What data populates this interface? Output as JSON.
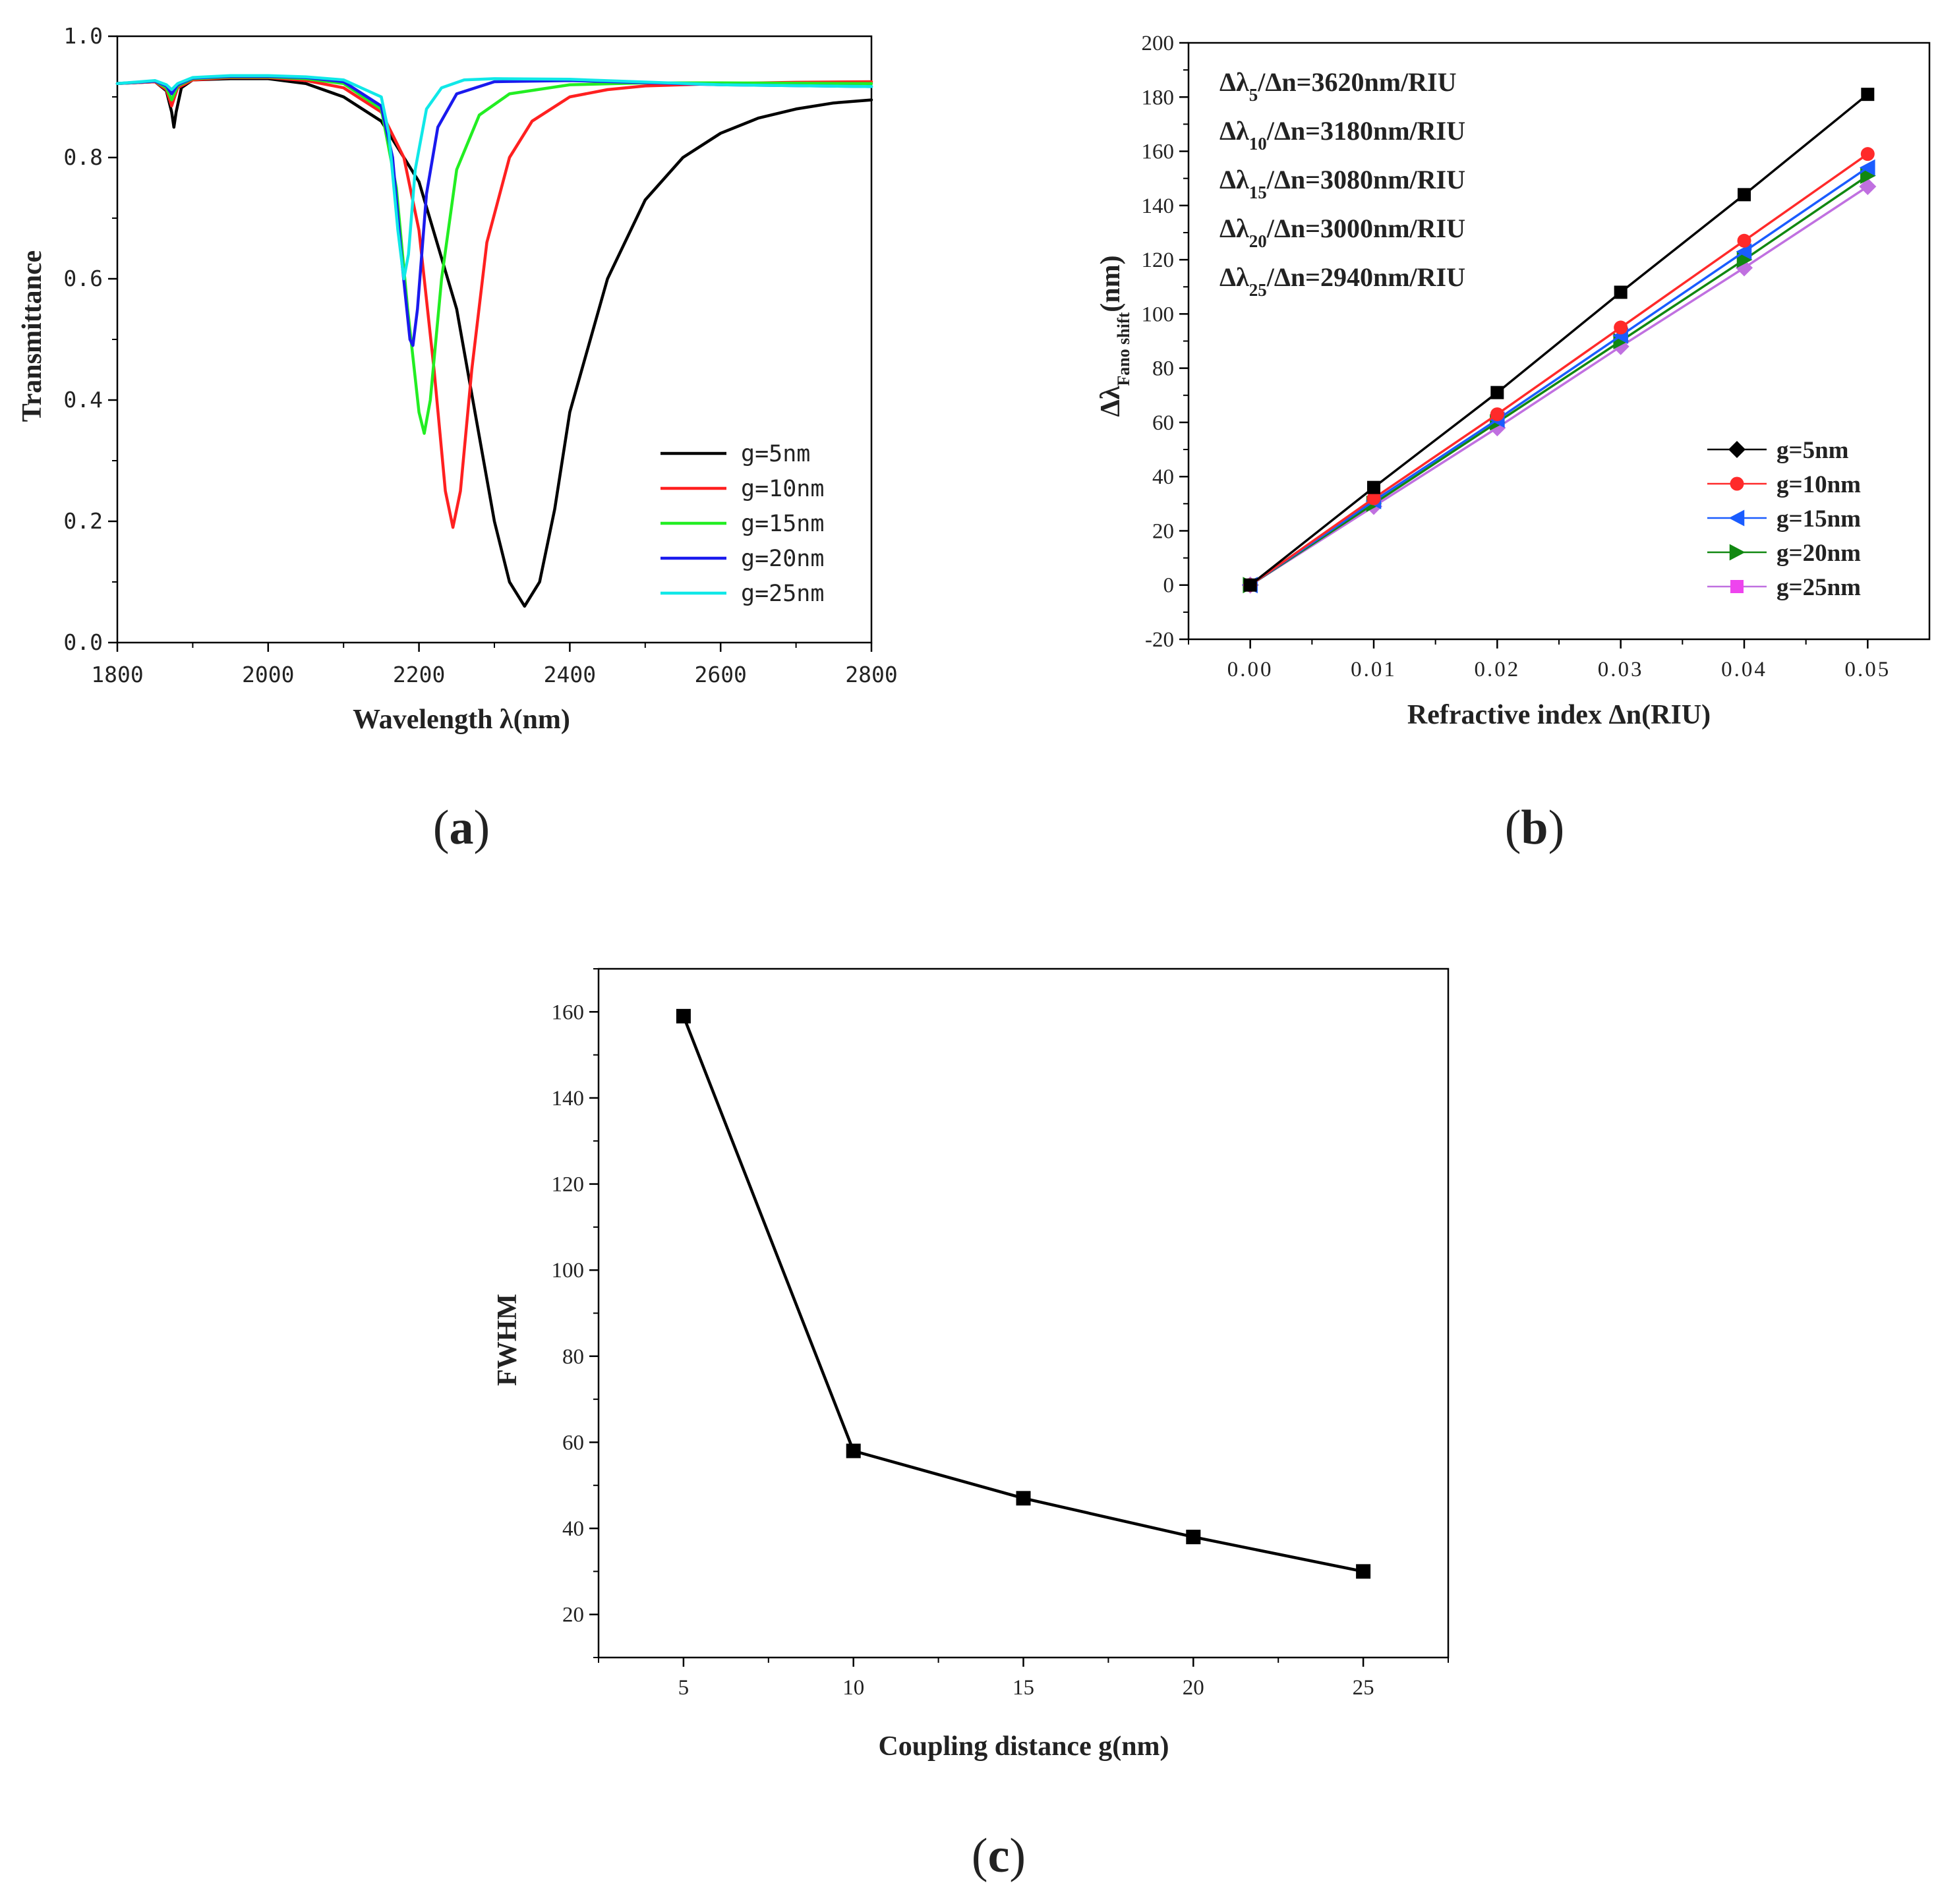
{
  "chart_data": [
    {
      "panel": "(a)",
      "panel_letter": "a",
      "type": "line",
      "xlabel": "Wavelength λ(nm)",
      "ylabel": "Transmittance",
      "xlim": [
        1800,
        2800
      ],
      "ylim": [
        0,
        1.0
      ],
      "xticks": [
        "1800",
        "2000",
        "2200",
        "2400",
        "2600",
        "2800"
      ],
      "yticks": [
        "0.0",
        "0.2",
        "0.4",
        "0.6",
        "0.8",
        "1.0"
      ],
      "grid": false,
      "legend_position": "lower-right",
      "series": [
        {
          "name": "g=5nm",
          "color": "#000000",
          "x": [
            1800,
            1850,
            1865,
            1872,
            1875,
            1878,
            1885,
            1900,
            1950,
            2000,
            2050,
            2100,
            2150,
            2200,
            2250,
            2280,
            2300,
            2320,
            2340,
            2360,
            2380,
            2400,
            2450,
            2500,
            2550,
            2600,
            2650,
            2700,
            2750,
            2800
          ],
          "y": [
            0.922,
            0.925,
            0.91,
            0.875,
            0.85,
            0.875,
            0.915,
            0.928,
            0.93,
            0.93,
            0.922,
            0.9,
            0.86,
            0.76,
            0.55,
            0.34,
            0.2,
            0.1,
            0.06,
            0.1,
            0.22,
            0.38,
            0.6,
            0.73,
            0.8,
            0.84,
            0.865,
            0.88,
            0.89,
            0.895
          ]
        },
        {
          "name": "g=10nm",
          "color": "#ff2020",
          "x": [
            1800,
            1850,
            1865,
            1872,
            1880,
            1900,
            1950,
            2000,
            2050,
            2100,
            2150,
            2180,
            2200,
            2220,
            2235,
            2245,
            2255,
            2270,
            2290,
            2320,
            2350,
            2400,
            2450,
            2500,
            2600,
            2700,
            2800
          ],
          "y": [
            0.922,
            0.925,
            0.912,
            0.885,
            0.915,
            0.928,
            0.932,
            0.932,
            0.927,
            0.915,
            0.875,
            0.8,
            0.68,
            0.45,
            0.25,
            0.19,
            0.25,
            0.45,
            0.66,
            0.8,
            0.86,
            0.9,
            0.912,
            0.918,
            0.922,
            0.924,
            0.925
          ]
        },
        {
          "name": "g=15nm",
          "color": "#22ee22",
          "x": [
            1800,
            1850,
            1865,
            1872,
            1880,
            1900,
            1950,
            2000,
            2050,
            2100,
            2150,
            2170,
            2185,
            2200,
            2207,
            2215,
            2230,
            2250,
            2280,
            2320,
            2400,
            2500,
            2600,
            2800
          ],
          "y": [
            0.922,
            0.926,
            0.915,
            0.895,
            0.918,
            0.93,
            0.933,
            0.933,
            0.93,
            0.922,
            0.88,
            0.75,
            0.55,
            0.38,
            0.345,
            0.4,
            0.6,
            0.78,
            0.87,
            0.905,
            0.92,
            0.923,
            0.923,
            0.922
          ]
        },
        {
          "name": "g=20nm",
          "color": "#1a1aee",
          "x": [
            1800,
            1850,
            1865,
            1872,
            1880,
            1900,
            1950,
            2000,
            2050,
            2100,
            2150,
            2165,
            2178,
            2188,
            2192,
            2198,
            2210,
            2225,
            2250,
            2300,
            2400,
            2600,
            2800
          ],
          "y": [
            0.922,
            0.926,
            0.918,
            0.905,
            0.92,
            0.931,
            0.934,
            0.934,
            0.932,
            0.925,
            0.885,
            0.8,
            0.62,
            0.5,
            0.49,
            0.55,
            0.74,
            0.85,
            0.905,
            0.925,
            0.927,
            0.92,
            0.917
          ]
        },
        {
          "name": "g=25nm",
          "color": "#10e8e8",
          "x": [
            1800,
            1850,
            1865,
            1872,
            1880,
            1900,
            1950,
            2000,
            2050,
            2100,
            2150,
            2160,
            2172,
            2180,
            2186,
            2195,
            2210,
            2230,
            2260,
            2300,
            2400,
            2600,
            2800
          ],
          "y": [
            0.922,
            0.927,
            0.92,
            0.912,
            0.922,
            0.932,
            0.935,
            0.935,
            0.933,
            0.928,
            0.9,
            0.84,
            0.68,
            0.6,
            0.64,
            0.78,
            0.88,
            0.915,
            0.928,
            0.93,
            0.929,
            0.92,
            0.917
          ]
        }
      ]
    },
    {
      "panel": "(b)",
      "panel_letter": "b",
      "type": "line",
      "xlabel": "Refractive index Δn(RIU)",
      "ylabel": "Δλ",
      "ylabel_sub": "Fano shift",
      "ylabel_tail": "(nm)",
      "xlim": [
        -0.005,
        0.055
      ],
      "ylim": [
        -20,
        200
      ],
      "xticks": [
        "0.00",
        "0.01",
        "0.02",
        "0.03",
        "0.04",
        "0.05"
      ],
      "yticks": [
        "-20",
        "0",
        "20",
        "40",
        "60",
        "80",
        "100",
        "120",
        "140",
        "160",
        "180",
        "200"
      ],
      "grid": false,
      "legend_position": "lower-right",
      "annotations": [
        {
          "pre": "Δλ",
          "sub": "5",
          "post": "/Δn=3620nm/RIU"
        },
        {
          "pre": "Δλ",
          "sub": "10",
          "post": "/Δn=3180nm/RIU"
        },
        {
          "pre": "Δλ",
          "sub": "15",
          "post": "/Δn=3080nm/RIU"
        },
        {
          "pre": "Δλ",
          "sub": "20",
          "post": "/Δn=3000nm/RIU"
        },
        {
          "pre": "Δλ",
          "sub": "25",
          "post": "/Δn=2940nm/RIU"
        }
      ],
      "x": [
        0,
        0.01,
        0.02,
        0.03,
        0.04,
        0.05
      ],
      "series": [
        {
          "name": "g=5nm",
          "color": "#000000",
          "marker": "square",
          "legend_marker": "diamond",
          "values": [
            0,
            36,
            71,
            108,
            144,
            181
          ]
        },
        {
          "name": "g=10nm",
          "color": "#ff2a2a",
          "marker": "circle",
          "values": [
            0,
            32,
            63,
            95,
            127,
            159
          ]
        },
        {
          "name": "g=15nm",
          "color": "#1a5cff",
          "marker": "triangle-left",
          "values": [
            0,
            31,
            61,
            92,
            123,
            154
          ]
        },
        {
          "name": "g=20nm",
          "color": "#118811",
          "marker": "triangle-right",
          "values": [
            0,
            30,
            60,
            90,
            120,
            151
          ]
        },
        {
          "name": "g=25nm",
          "color": "#c070e0",
          "marker": "diamond",
          "legend_marker": "square",
          "legend_color": "#ee44ee",
          "values": [
            0,
            29,
            58,
            88,
            117,
            147
          ]
        }
      ]
    },
    {
      "panel": "(c)",
      "panel_letter": "c",
      "type": "line",
      "xlabel": "Coupling distance g(nm)",
      "ylabel": "FWHM",
      "xlim": [
        2.5,
        27.5
      ],
      "ylim": [
        10,
        170
      ],
      "xticks": [
        "5",
        "10",
        "15",
        "20",
        "25"
      ],
      "yticks": [
        "20",
        "40",
        "60",
        "80",
        "100",
        "120",
        "140",
        "160"
      ],
      "grid": false,
      "x": [
        5,
        10,
        15,
        20,
        25
      ],
      "values": [
        159,
        58,
        47,
        38,
        30
      ],
      "color": "#000000",
      "marker": "square"
    }
  ]
}
